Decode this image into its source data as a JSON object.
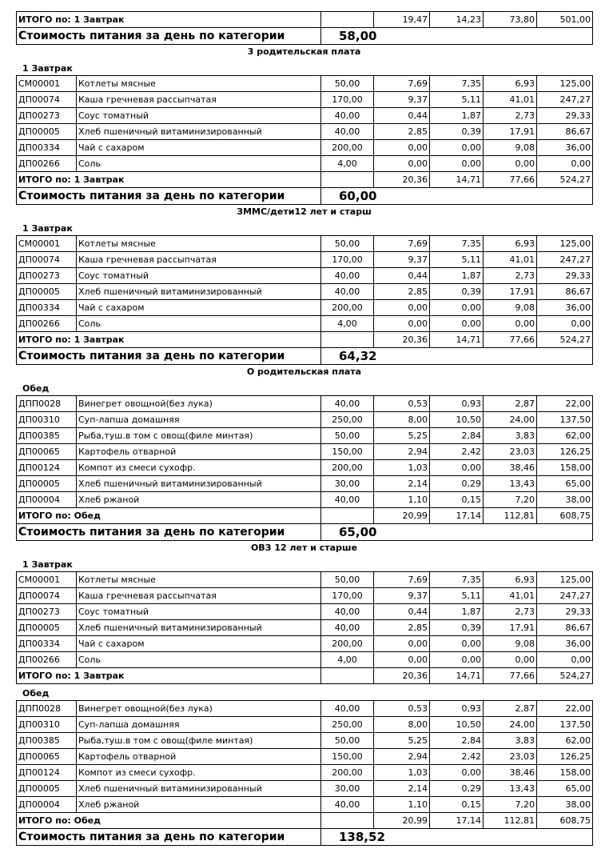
{
  "top": {
    "total": {
      "label": "ИТОГО по: 1 Завтрак",
      "values": [
        "19,47",
        "14,23",
        "73,80",
        "501,00"
      ]
    },
    "cost_label": "Стоимость питания за день по категории",
    "cost": "58,00"
  },
  "sections": [
    {
      "title": "3 родительская плата",
      "cost_label": "Стоимость питания за день по категории",
      "cost": "60,00",
      "groups": [
        {
          "label": "1 Завтрак",
          "rows": [
            [
              "СМ00001",
              "Котлеты мясные",
              "50,00",
              "7,69",
              "7,35",
              "6,93",
              "125,00"
            ],
            [
              "ДП00074",
              "Каша гречневая рассыпчатая",
              "170,00",
              "9,37",
              "5,11",
              "41,01",
              "247,27"
            ],
            [
              "ДП00273",
              "Соус томатный",
              "40,00",
              "0,44",
              "1,87",
              "2,73",
              "29,33"
            ],
            [
              "ДП00005",
              "Хлеб пшеничный витаминизированный",
              "40,00",
              "2,85",
              "0,39",
              "17,91",
              "86,67"
            ],
            [
              "ДП00334",
              "Чай с сахаром",
              "200,00",
              "0,00",
              "0,00",
              "9,08",
              "36,00"
            ],
            [
              "ДП00266",
              "Соль",
              "4,00",
              "0,00",
              "0,00",
              "0,00",
              "0,00"
            ]
          ],
          "total": {
            "label": "ИТОГО по: 1 Завтрак",
            "values": [
              "20,36",
              "14,71",
              "77,66",
              "524,27"
            ]
          }
        }
      ]
    },
    {
      "title": "ЗММС/дети12 лет и старш",
      "cost_label": "Стоимость питания за день по категории",
      "cost": "64,32",
      "groups": [
        {
          "label": "1 Завтрак",
          "rows": [
            [
              "СМ00001",
              "Котлеты мясные",
              "50,00",
              "7,69",
              "7,35",
              "6,93",
              "125,00"
            ],
            [
              "ДП00074",
              "Каша гречневая рассыпчатая",
              "170,00",
              "9,37",
              "5,11",
              "41,01",
              "247,27"
            ],
            [
              "ДП00273",
              "Соус томатный",
              "40,00",
              "0,44",
              "1,87",
              "2,73",
              "29,33"
            ],
            [
              "ДП00005",
              "Хлеб пшеничный витаминизированный",
              "40,00",
              "2,85",
              "0,39",
              "17,91",
              "86,67"
            ],
            [
              "ДП00334",
              "Чай с сахаром",
              "200,00",
              "0,00",
              "0,00",
              "9,08",
              "36,00"
            ],
            [
              "ДП00266",
              "Соль",
              "4,00",
              "0,00",
              "0,00",
              "0,00",
              "0,00"
            ]
          ],
          "total": {
            "label": "ИТОГО по: 1 Завтрак",
            "values": [
              "20,36",
              "14,71",
              "77,66",
              "524,27"
            ]
          }
        }
      ]
    },
    {
      "title": "О родительская плата",
      "cost_label": "Стоимость питания за день по категории",
      "cost": "65,00",
      "groups": [
        {
          "label": "Обед",
          "rows": [
            [
              "ДПП0028",
              "Винегрет овощной(без лука)",
              "40,00",
              "0,53",
              "0,93",
              "2,87",
              "22,00"
            ],
            [
              "ДП00310",
              "Суп-лапша домашняя",
              "250,00",
              "8,00",
              "10,50",
              "24,00",
              "137,50"
            ],
            [
              "ДП00385",
              "Рыба,туш.в том с овощ(филе минтая)",
              "50,00",
              "5,25",
              "2,84",
              "3,83",
              "62,00"
            ],
            [
              "ДП00065",
              "Картофель отварной",
              "150,00",
              "2,94",
              "2,42",
              "23,03",
              "126,25"
            ],
            [
              "ДП00124",
              "Компот из смеси сухофр.",
              "200,00",
              "1,03",
              "0,00",
              "38,46",
              "158,00"
            ],
            [
              "ДП00005",
              "Хлеб пшеничный витаминизированный",
              "30,00",
              "2,14",
              "0,29",
              "13,43",
              "65,00"
            ],
            [
              "ДП00004",
              "Хлеб ржаной",
              "40,00",
              "1,10",
              "0,15",
              "7,20",
              "38,00"
            ]
          ],
          "total": {
            "label": "ИТОГО по: Обед",
            "values": [
              "20,99",
              "17,14",
              "112,81",
              "608,75"
            ]
          }
        }
      ]
    },
    {
      "title": "ОВЗ 12 лет и старше",
      "cost_label": "Стоимость питания за день по категории",
      "cost": "138,52",
      "groups": [
        {
          "label": "1 Завтрак",
          "rows": [
            [
              "СМ00001",
              "Котлеты мясные",
              "50,00",
              "7,69",
              "7,35",
              "6,93",
              "125,00"
            ],
            [
              "ДП00074",
              "Каша гречневая рассыпчатая",
              "170,00",
              "9,37",
              "5,11",
              "41,01",
              "247,27"
            ],
            [
              "ДП00273",
              "Соус томатный",
              "40,00",
              "0,44",
              "1,87",
              "2,73",
              "29,33"
            ],
            [
              "ДП00005",
              "Хлеб пшеничный витаминизированный",
              "40,00",
              "2,85",
              "0,39",
              "17,91",
              "86,67"
            ],
            [
              "ДП00334",
              "Чай с сахаром",
              "200,00",
              "0,00",
              "0,00",
              "9,08",
              "36,00"
            ],
            [
              "ДП00266",
              "Соль",
              "4,00",
              "0,00",
              "0,00",
              "0,00",
              "0,00"
            ]
          ],
          "total": {
            "label": "ИТОГО по: 1 Завтрак",
            "values": [
              "20,36",
              "14,71",
              "77,66",
              "524,27"
            ]
          }
        },
        {
          "label": "Обед",
          "rows": [
            [
              "ДПП0028",
              "Винегрет овощной(без лука)",
              "40,00",
              "0,53",
              "0,93",
              "2,87",
              "22,00"
            ],
            [
              "ДП00310",
              "Суп-лапша домашняя",
              "250,00",
              "8,00",
              "10,50",
              "24,00",
              "137,50"
            ],
            [
              "ДП00385",
              "Рыба,туш.в том с овощ(филе минтая)",
              "50,00",
              "5,25",
              "2,84",
              "3,83",
              "62,00"
            ],
            [
              "ДП00065",
              "Картофель отварной",
              "150,00",
              "2,94",
              "2,42",
              "23,03",
              "126,25"
            ],
            [
              "ДП00124",
              "Компот из смеси сухофр.",
              "200,00",
              "1,03",
              "0,00",
              "38,46",
              "158,00"
            ],
            [
              "ДП00005",
              "Хлеб пшеничный витаминизированный",
              "30,00",
              "2,14",
              "0,29",
              "13,43",
              "65,00"
            ],
            [
              "ДП00004",
              "Хлеб ржаной",
              "40,00",
              "1,10",
              "0,15",
              "7,20",
              "38,00"
            ]
          ],
          "total": {
            "label": "ИТОГО по: Обед",
            "values": [
              "20,99",
              "17,14",
              "112,81",
              "608,75"
            ]
          }
        }
      ]
    }
  ]
}
